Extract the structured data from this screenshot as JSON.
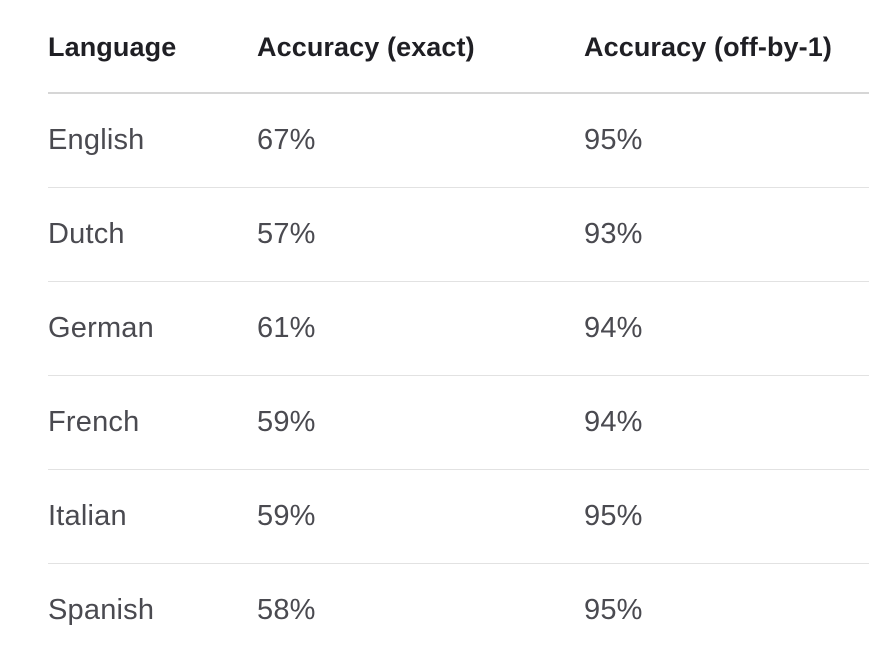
{
  "table": {
    "headers": [
      "Language",
      "Accuracy (exact)",
      "Accuracy (off-by-1)"
    ],
    "rows": [
      [
        "English",
        "67%",
        "95%"
      ],
      [
        "Dutch",
        "57%",
        "93%"
      ],
      [
        "German",
        "61%",
        "94%"
      ],
      [
        "French",
        "59%",
        "94%"
      ],
      [
        "Italian",
        "59%",
        "95%"
      ],
      [
        "Spanish",
        "58%",
        "95%"
      ]
    ]
  }
}
